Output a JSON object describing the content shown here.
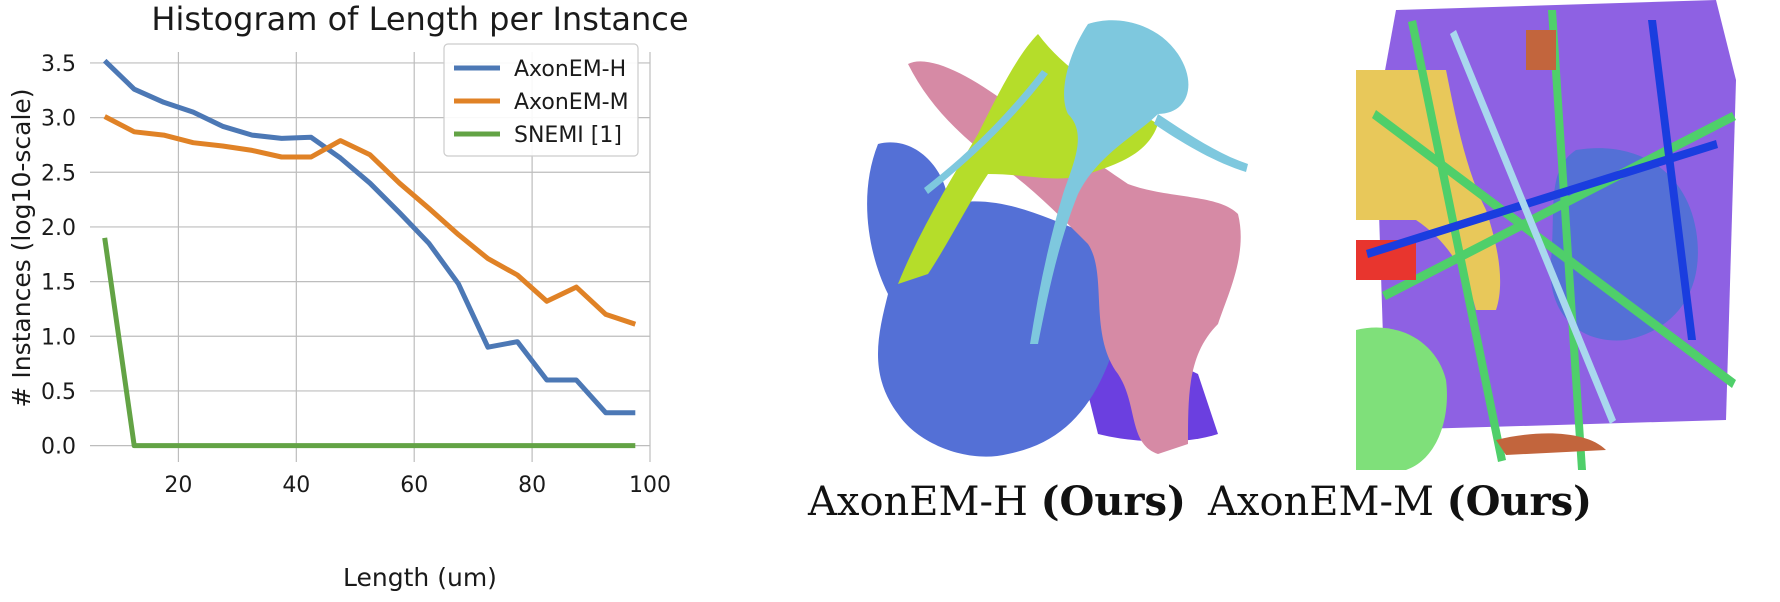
{
  "colors": {
    "axonem_h": "#4c78b5",
    "axonem_m": "#e08226",
    "snemi": "#63a345",
    "grid": "#bdbdbd"
  },
  "chart_data": {
    "type": "line",
    "title": "Histogram of Length per Instance",
    "xlabel": "Length (um)",
    "ylabel": "# Instances (log10-scale)",
    "xlim": [
      5,
      100
    ],
    "ylim": [
      -0.15,
      3.6
    ],
    "xticks": [
      20,
      40,
      60,
      80,
      100
    ],
    "yticks": [
      0.0,
      0.5,
      1.0,
      1.5,
      2.0,
      2.5,
      3.0,
      3.5
    ],
    "grid": true,
    "legend_position": "top-right",
    "series": [
      {
        "name": "AxonEM-H",
        "color": "#4c78b5",
        "x": [
          7.5,
          12.5,
          17.5,
          22.5,
          27.5,
          32.5,
          37.5,
          42.5,
          47.5,
          52.5,
          57.5,
          62.5,
          67.5,
          72.5,
          77.5,
          82.5,
          87.5,
          92.5,
          97.5
        ],
        "values": [
          3.52,
          3.26,
          3.14,
          3.05,
          2.92,
          2.84,
          2.81,
          2.82,
          2.63,
          2.4,
          2.13,
          1.85,
          1.48,
          0.9,
          0.95,
          0.6,
          0.6,
          0.3,
          0.3
        ]
      },
      {
        "name": "AxonEM-M",
        "color": "#e08226",
        "x": [
          7.5,
          12.5,
          17.5,
          22.5,
          27.5,
          32.5,
          37.5,
          42.5,
          47.5,
          52.5,
          57.5,
          62.5,
          67.5,
          72.5,
          77.5,
          82.5,
          87.5,
          92.5,
          97.5
        ],
        "values": [
          3.01,
          2.87,
          2.84,
          2.77,
          2.74,
          2.7,
          2.64,
          2.64,
          2.79,
          2.66,
          2.4,
          2.17,
          1.93,
          1.71,
          1.56,
          1.32,
          1.45,
          1.2,
          1.11
        ]
      },
      {
        "name": "SNEMI [1]",
        "color": "#63a345",
        "x": [
          7.5,
          12.5,
          17.5,
          22.5,
          27.5,
          32.5,
          37.5,
          42.5,
          47.5,
          52.5,
          57.5,
          62.5,
          67.5,
          72.5,
          77.5,
          82.5,
          87.5,
          92.5,
          97.5
        ],
        "values": [
          1.9,
          0.0,
          0.0,
          0.0,
          0.0,
          0.0,
          0.0,
          0.0,
          0.0,
          0.0,
          0.0,
          0.0,
          0.0,
          0.0,
          0.0,
          0.0,
          0.0,
          0.0,
          0.0
        ]
      }
    ]
  },
  "panels": {
    "left": {
      "caption_plain": "AxonEM-H ",
      "caption_bold": "(Ours)",
      "image_description": "3D rendering of segmented neurons"
    },
    "right": {
      "caption_plain": "AxonEM-M ",
      "caption_bold": "(Ours)",
      "image_description": "3D rendering of densely segmented neurons"
    }
  }
}
